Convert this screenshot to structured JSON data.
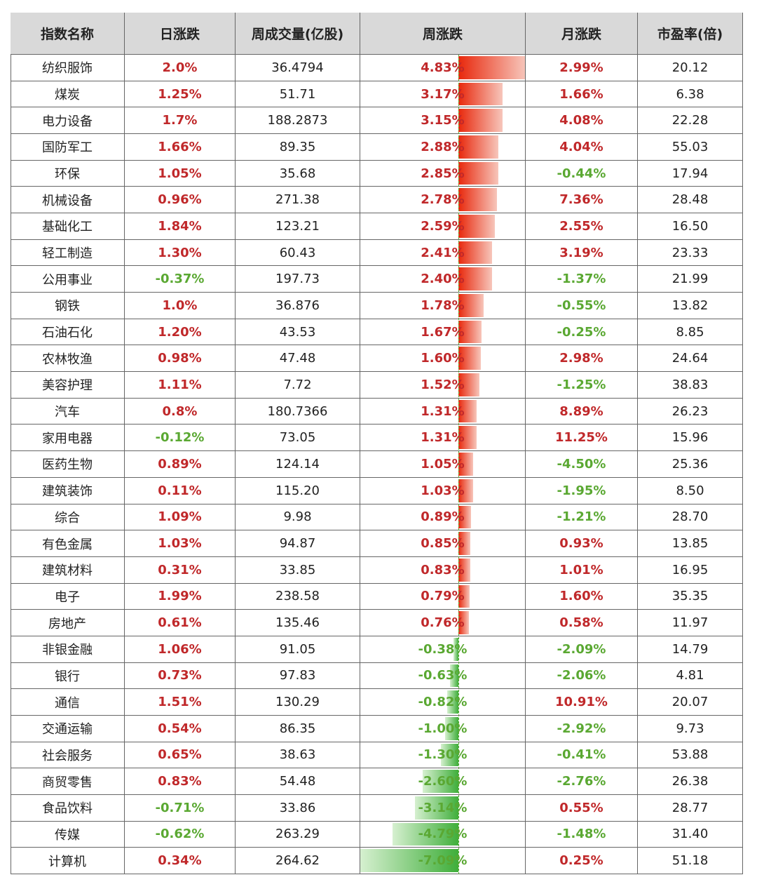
{
  "table": {
    "header": [
      "指数名称",
      "日涨跌",
      "周成交量(亿股)",
      "周涨跌",
      "月涨跌",
      "市盈率(倍)"
    ],
    "rows": [
      [
        "纺织服饰",
        "2.0%",
        "36.4794",
        {
          "value": 4.83,
          "label": "4.83%"
        },
        "2.99%",
        "20.12"
      ],
      [
        "煤炭",
        "1.25%",
        "51.71",
        {
          "value": 3.17,
          "label": "3.17%"
        },
        "1.66%",
        "6.38"
      ],
      [
        "电力设备",
        "1.7%",
        "188.2873",
        {
          "value": 3.15,
          "label": "3.15%"
        },
        "4.08%",
        "22.28"
      ],
      [
        "国防军工",
        "1.66%",
        "89.35",
        {
          "value": 2.88,
          "label": "2.88%"
        },
        "4.04%",
        "55.03"
      ],
      [
        "环保",
        "1.05%",
        "35.68",
        {
          "value": 2.85,
          "label": "2.85%"
        },
        "-0.44%",
        "17.94"
      ],
      [
        "机械设备",
        "0.96%",
        "271.38",
        {
          "value": 2.78,
          "label": "2.78%"
        },
        "7.36%",
        "28.48"
      ],
      [
        "基础化工",
        "1.84%",
        "123.21",
        {
          "value": 2.59,
          "label": "2.59%"
        },
        "2.55%",
        "16.50"
      ],
      [
        "轻工制造",
        "1.30%",
        "60.43",
        {
          "value": 2.41,
          "label": "2.41%"
        },
        "3.19%",
        "23.33"
      ],
      [
        "公用事业",
        "-0.37%",
        "197.73",
        {
          "value": 2.4,
          "label": "2.40%"
        },
        "-1.37%",
        "21.99"
      ],
      [
        "钢铁",
        "1.0%",
        "36.876",
        {
          "value": 1.78,
          "label": "1.78%"
        },
        "-0.55%",
        "13.82"
      ],
      [
        "石油石化",
        "1.20%",
        "43.53",
        {
          "value": 1.67,
          "label": "1.67%"
        },
        "-0.25%",
        "8.85"
      ],
      [
        "农林牧渔",
        "0.98%",
        "47.48",
        {
          "value": 1.6,
          "label": "1.60%"
        },
        "2.98%",
        "24.64"
      ],
      [
        "美容护理",
        "1.11%",
        "7.72",
        {
          "value": 1.52,
          "label": "1.52%"
        },
        "-1.25%",
        "38.83"
      ],
      [
        "汽车",
        "0.8%",
        "180.7366",
        {
          "value": 1.31,
          "label": "1.31%"
        },
        "8.89%",
        "26.23"
      ],
      [
        "家用电器",
        "-0.12%",
        "73.05",
        {
          "value": 1.31,
          "label": "1.31%"
        },
        "11.25%",
        "15.96"
      ],
      [
        "医药生物",
        "0.89%",
        "124.14",
        {
          "value": 1.05,
          "label": "1.05%"
        },
        "-4.50%",
        "25.36"
      ],
      [
        "建筑装饰",
        "0.11%",
        "115.20",
        {
          "value": 1.03,
          "label": "1.03%"
        },
        "-1.95%",
        "8.50"
      ],
      [
        "综合",
        "1.09%",
        "9.98",
        {
          "value": 0.89,
          "label": "0.89%"
        },
        "-1.21%",
        "28.70"
      ],
      [
        "有色金属",
        "1.03%",
        "94.87",
        {
          "value": 0.85,
          "label": "0.85%"
        },
        "0.93%",
        "13.85"
      ],
      [
        "建筑材料",
        "0.31%",
        "33.85",
        {
          "value": 0.83,
          "label": "0.83%"
        },
        "1.01%",
        "16.95"
      ],
      [
        "电子",
        "1.99%",
        "238.58",
        {
          "value": 0.79,
          "label": "0.79%"
        },
        "1.60%",
        "35.35"
      ],
      [
        "房地产",
        "0.61%",
        "135.46",
        {
          "value": 0.76,
          "label": "0.76%"
        },
        "0.58%",
        "11.97"
      ],
      [
        "非银金融",
        "1.06%",
        "91.05",
        {
          "value": -0.38,
          "label": "-0.38%"
        },
        "-2.09%",
        "14.79"
      ],
      [
        "银行",
        "0.73%",
        "97.83",
        {
          "value": -0.63,
          "label": "-0.63%"
        },
        "-2.06%",
        "4.81"
      ],
      [
        "通信",
        "1.51%",
        "130.29",
        {
          "value": -0.82,
          "label": "-0.82%"
        },
        "10.91%",
        "20.07"
      ],
      [
        "交通运输",
        "0.54%",
        "86.35",
        {
          "value": -1.0,
          "label": "-1.00%"
        },
        "-2.92%",
        "9.73"
      ],
      [
        "社会服务",
        "0.65%",
        "38.63",
        {
          "value": -1.3,
          "label": "-1.30%"
        },
        "-0.41%",
        "53.88"
      ],
      [
        "商贸零售",
        "0.83%",
        "54.48",
        {
          "value": -2.6,
          "label": "-2.60%"
        },
        "-2.76%",
        "26.38"
      ],
      [
        "食品饮料",
        "-0.71%",
        "33.86",
        {
          "value": -3.14,
          "label": "-3.14%"
        },
        "0.55%",
        "28.77"
      ],
      [
        "传媒",
        "-0.62%",
        "263.29",
        {
          "value": -4.79,
          "label": "-4.79%"
        },
        "-1.48%",
        "31.40"
      ],
      [
        "计算机",
        "0.34%",
        "264.62",
        {
          "value": -7.09,
          "label": "-7.09%"
        },
        "0.25%",
        "51.18"
      ]
    ]
  }
}
